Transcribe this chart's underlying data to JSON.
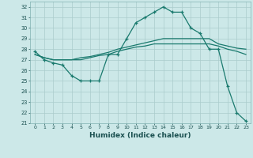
{
  "xlabel": "Humidex (Indice chaleur)",
  "bg_color": "#cce8e8",
  "grid_color": "#aacccc",
  "line_color": "#1a7a6e",
  "xlim": [
    -0.5,
    23.5
  ],
  "ylim": [
    21,
    32.5
  ],
  "yticks": [
    21,
    22,
    23,
    24,
    25,
    26,
    27,
    28,
    29,
    30,
    31,
    32
  ],
  "xticks": [
    0,
    1,
    2,
    3,
    4,
    5,
    6,
    7,
    8,
    9,
    10,
    11,
    12,
    13,
    14,
    15,
    16,
    17,
    18,
    19,
    20,
    21,
    22,
    23
  ],
  "series1_x": [
    0,
    1,
    2,
    3,
    4,
    5,
    6,
    7,
    8,
    9,
    10,
    11,
    12,
    13,
    14,
    15,
    16,
    17,
    18,
    19,
    20,
    21,
    22,
    23
  ],
  "series1_y": [
    27.8,
    27.0,
    26.7,
    26.5,
    25.5,
    25.0,
    25.0,
    25.0,
    27.5,
    27.5,
    29.0,
    30.5,
    31.0,
    31.5,
    32.0,
    31.5,
    31.5,
    30.0,
    29.5,
    28.0,
    28.0,
    24.5,
    22.0,
    21.2
  ],
  "series2_x": [
    0,
    1,
    2,
    3,
    4,
    5,
    6,
    7,
    8,
    9,
    10,
    11,
    12,
    13,
    14,
    15,
    16,
    17,
    18,
    19,
    20,
    21,
    22,
    23
  ],
  "series2_y": [
    27.5,
    27.2,
    27.0,
    27.0,
    27.0,
    27.2,
    27.3,
    27.5,
    27.7,
    28.0,
    28.2,
    28.4,
    28.6,
    28.8,
    29.0,
    29.0,
    29.0,
    29.0,
    29.0,
    29.0,
    28.5,
    28.3,
    28.1,
    28.0
  ],
  "series3_x": [
    0,
    1,
    2,
    3,
    4,
    5,
    6,
    7,
    8,
    9,
    10,
    11,
    12,
    13,
    14,
    15,
    16,
    17,
    18,
    19,
    20,
    21,
    22,
    23
  ],
  "series3_y": [
    27.5,
    27.2,
    27.0,
    27.0,
    27.0,
    27.0,
    27.2,
    27.4,
    27.5,
    27.8,
    28.0,
    28.2,
    28.3,
    28.5,
    28.5,
    28.5,
    28.5,
    28.5,
    28.5,
    28.5,
    28.3,
    28.0,
    27.8,
    27.5
  ]
}
